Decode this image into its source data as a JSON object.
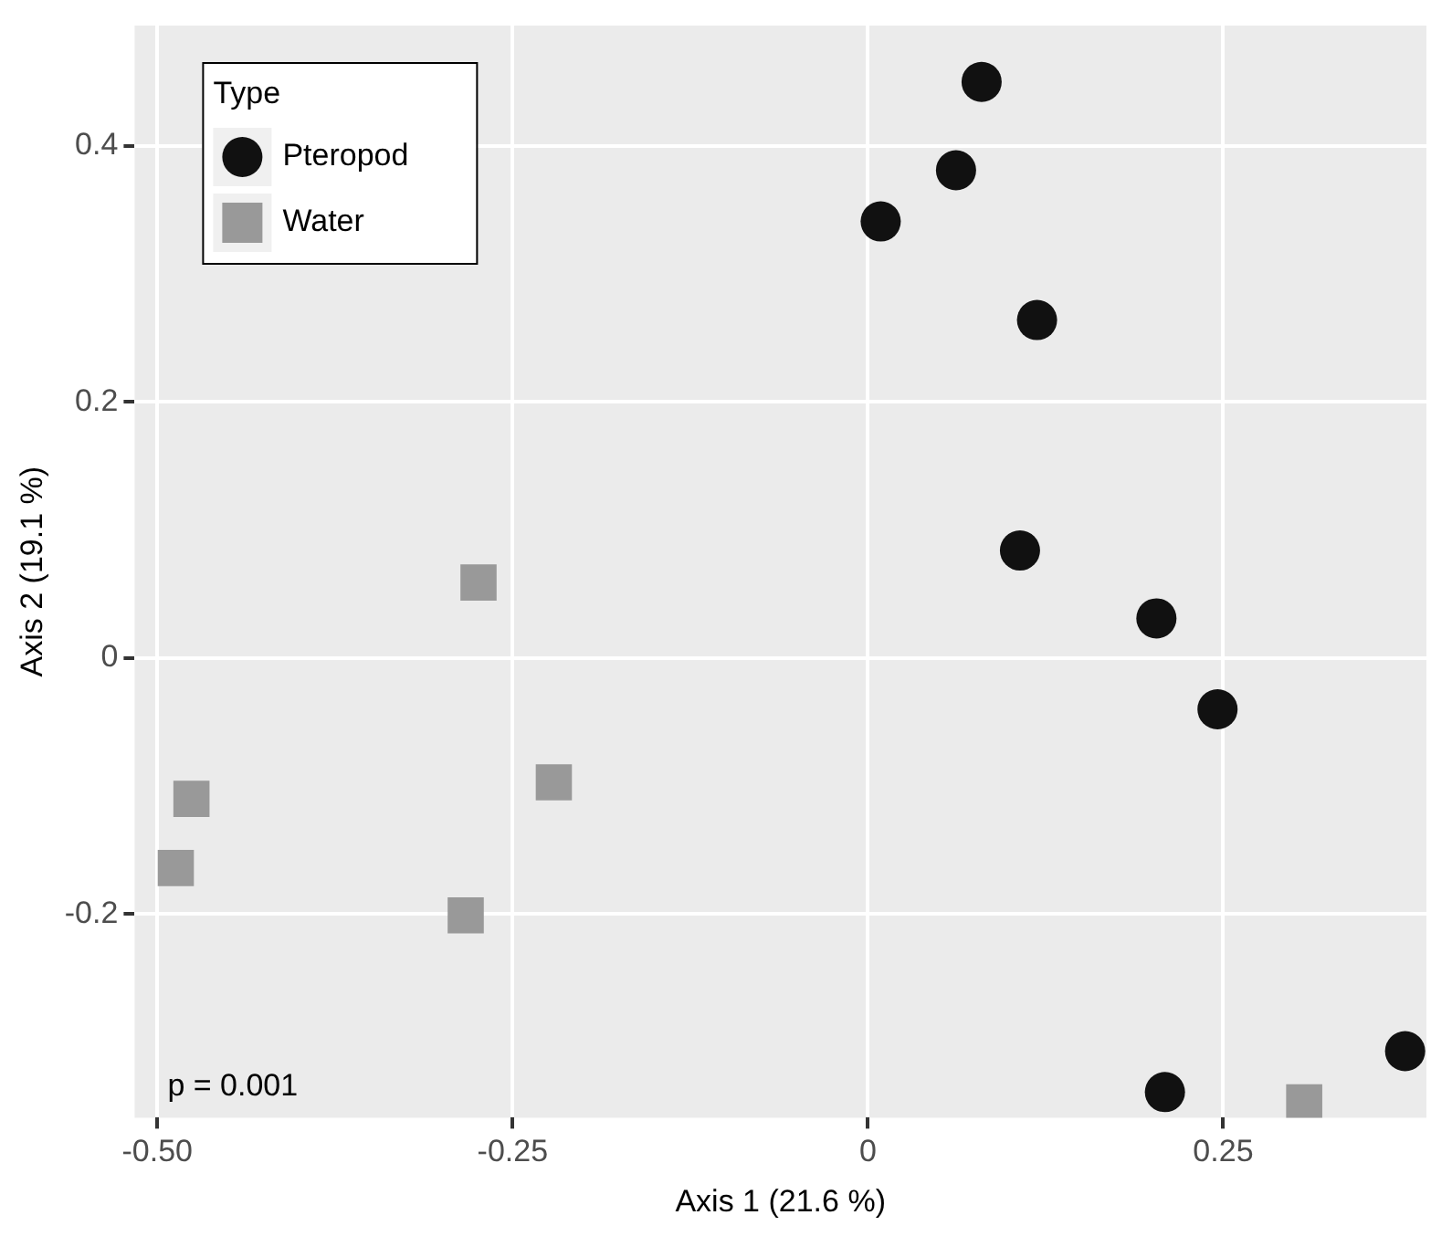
{
  "chart_data": {
    "type": "scatter",
    "xlabel": "Axis 1 (21.6 %)",
    "ylabel": "Axis 2 (19.1 %)",
    "legend_title": "Type",
    "legend": "top left",
    "grid": true,
    "xlim": [
      -0.516,
      0.393
    ],
    "ylim": [
      -0.359,
      0.494
    ],
    "xticks": [
      {
        "value": -0.5,
        "label": "-0.50"
      },
      {
        "value": -0.25,
        "label": "-0.25"
      },
      0,
      0.25
    ],
    "yticks": [
      {
        "value": -0.2,
        "label": "-0.2"
      },
      0,
      0.2,
      0.4
    ],
    "annotations": [
      "p = 0.001"
    ],
    "series": [
      {
        "name": "Pteropod",
        "color": "#111111",
        "marker": "circle",
        "x": [
          0.08,
          0.062,
          0.009,
          0.119,
          0.107,
          0.203,
          0.246,
          0.378,
          0.209
        ],
        "values": [
          0.45,
          0.381,
          0.341,
          0.264,
          0.084,
          0.031,
          -0.04,
          -0.307,
          -0.339
        ]
      },
      {
        "name": "Water",
        "color": "#999999",
        "marker": "square",
        "x": [
          -0.274,
          -0.221,
          -0.283,
          -0.476,
          -0.487,
          0.307
        ],
        "values": [
          0.059,
          -0.097,
          -0.201,
          -0.11,
          -0.164,
          -0.347
        ]
      }
    ]
  }
}
